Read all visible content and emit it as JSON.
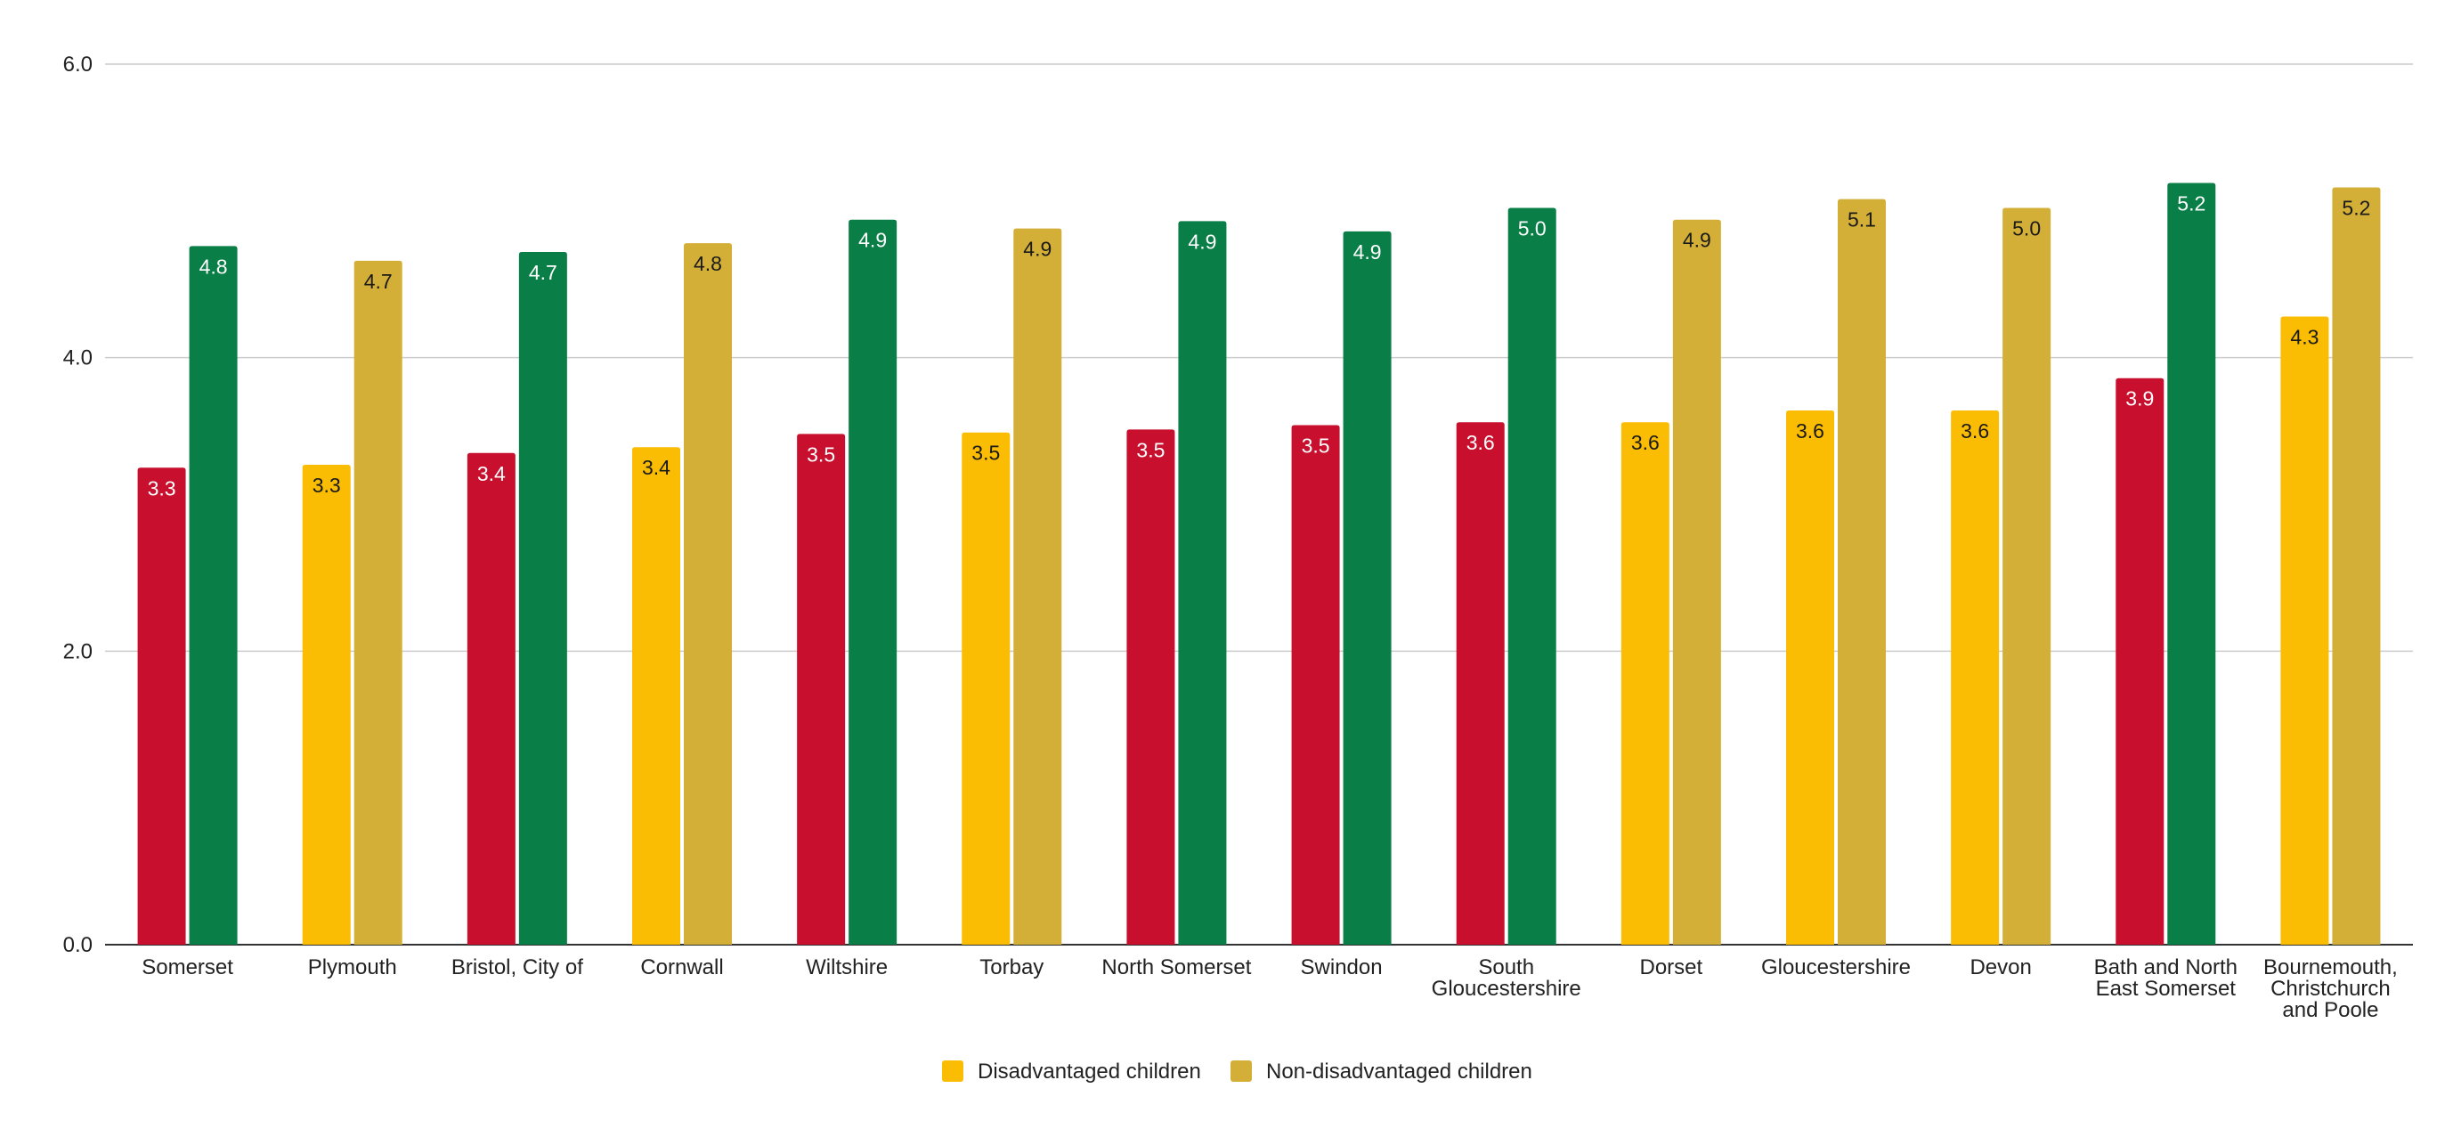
{
  "chart_data": {
    "type": "bar",
    "title": "",
    "xlabel": "",
    "ylabel": "",
    "ylim": [
      0,
      6
    ],
    "yticks": [
      "0.0",
      "2.0",
      "4.0",
      "6.0"
    ],
    "grid": true,
    "legend_position": "bottom",
    "categories": [
      [
        "Somerset"
      ],
      [
        "Plymouth"
      ],
      [
        "Bristol, City of"
      ],
      [
        "Cornwall"
      ],
      [
        "Wiltshire"
      ],
      [
        "Torbay"
      ],
      [
        "North Somerset"
      ],
      [
        "Swindon"
      ],
      [
        "South",
        "Gloucestershire"
      ],
      [
        "Dorset"
      ],
      [
        "Gloucestershire"
      ],
      [
        "Devon"
      ],
      [
        "Bath and North",
        "East Somerset"
      ],
      [
        "Bournemouth,",
        "Christchurch",
        "and Poole"
      ]
    ],
    "series": [
      {
        "name": "Disadvantaged children",
        "legend_color": "#FBBC04",
        "values": [
          3.25,
          3.27,
          3.35,
          3.39,
          3.48,
          3.49,
          3.51,
          3.54,
          3.56,
          3.56,
          3.64,
          3.64,
          3.86,
          4.28
        ],
        "labels": [
          "3.3",
          "3.3",
          "3.4",
          "3.4",
          "3.5",
          "3.5",
          "3.5",
          "3.5",
          "3.6",
          "3.6",
          "3.6",
          "3.6",
          "3.9",
          "4.3"
        ],
        "bar_colors": [
          "#C8102E",
          "#FBBC04",
          "#C8102E",
          "#FBBC04",
          "#C8102E",
          "#FBBC04",
          "#C8102E",
          "#C8102E",
          "#C8102E",
          "#FBBC04",
          "#FBBC04",
          "#FBBC04",
          "#C8102E",
          "#FBBC04"
        ]
      },
      {
        "name": "Non-disadvantaged children",
        "legend_color": "#D4AF37",
        "values": [
          4.76,
          4.66,
          4.72,
          4.78,
          4.94,
          4.88,
          4.93,
          4.86,
          5.02,
          4.94,
          5.08,
          5.02,
          5.19,
          5.16
        ],
        "labels": [
          "4.8",
          "4.7",
          "4.7",
          "4.8",
          "4.9",
          "4.9",
          "4.9",
          "4.9",
          "5.0",
          "4.9",
          "5.1",
          "5.0",
          "5.2",
          "5.2"
        ],
        "bar_colors": [
          "#097E46",
          "#D4AF37",
          "#097E46",
          "#D4AF37",
          "#097E46",
          "#D4AF37",
          "#097E46",
          "#097E46",
          "#097E46",
          "#D4AF37",
          "#D4AF37",
          "#D4AF37",
          "#097E46",
          "#D4AF37"
        ]
      }
    ]
  }
}
